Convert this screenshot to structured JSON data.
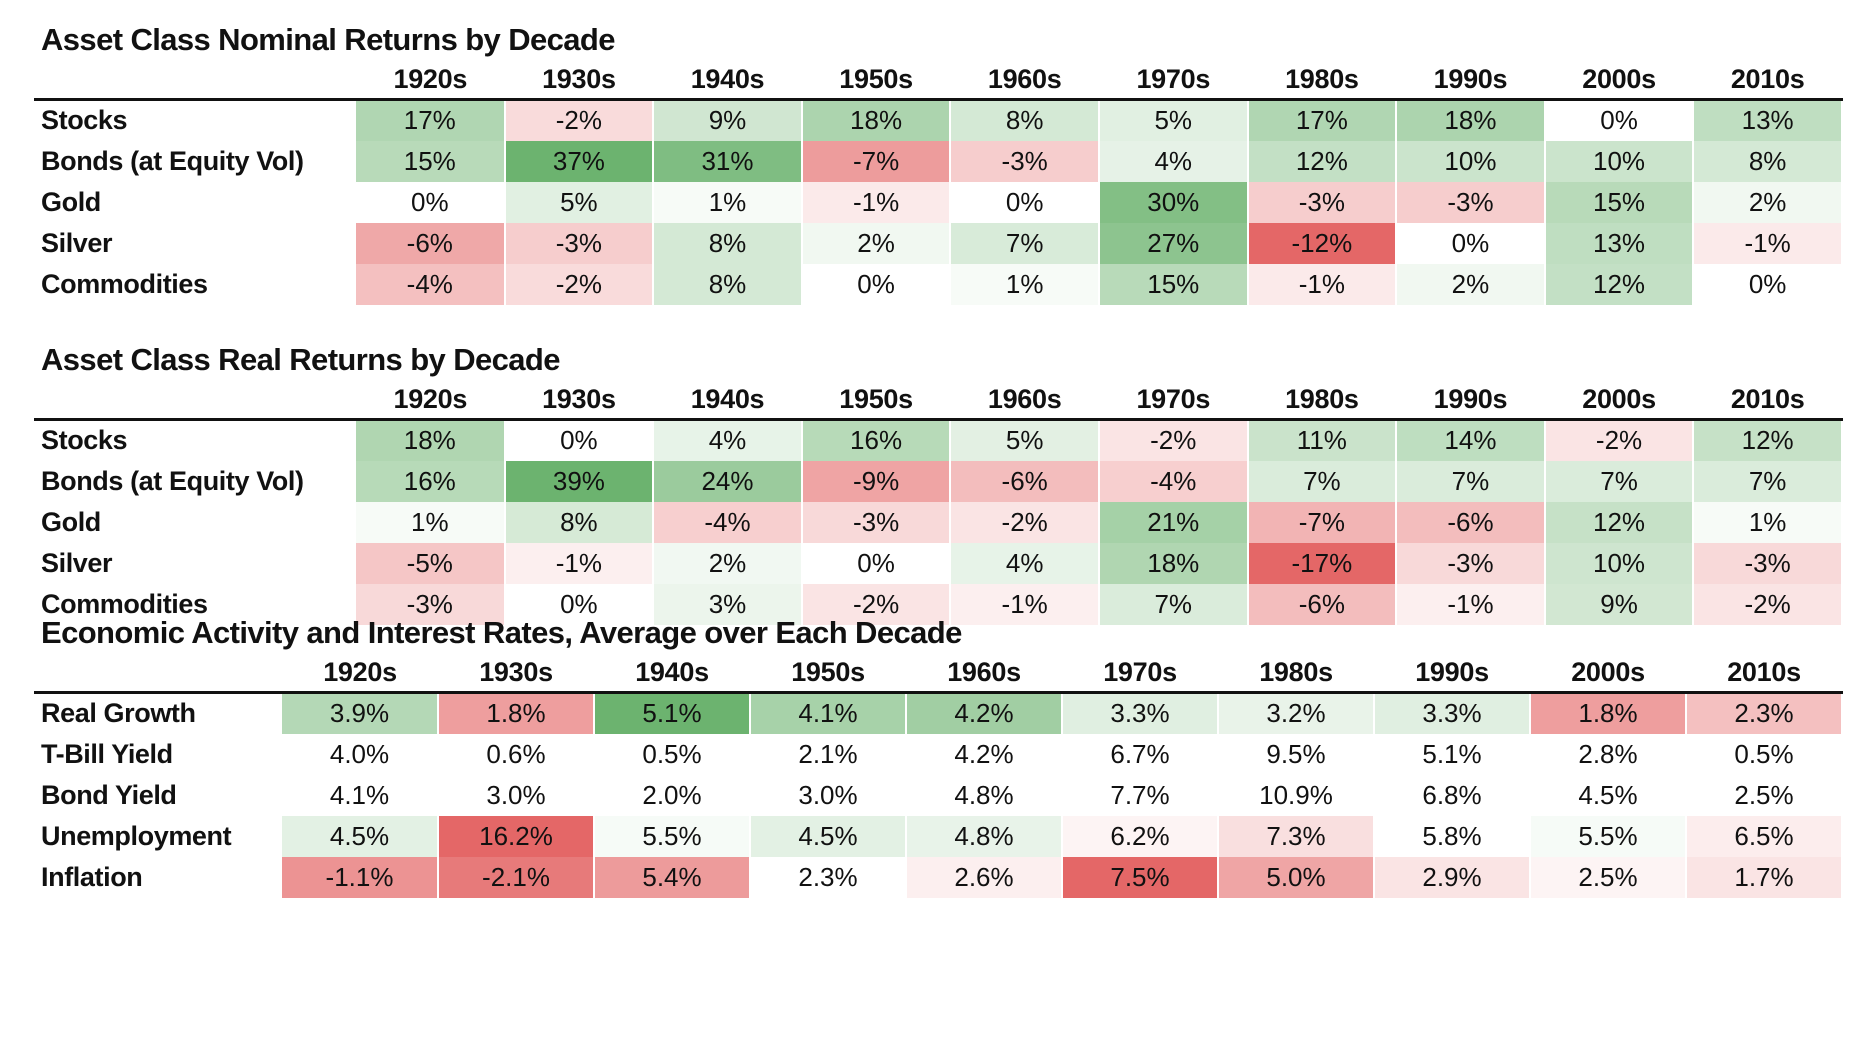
{
  "colors": {
    "green_max": "#6cb36f",
    "red_max": "#e46767",
    "neutral": "#ffffff"
  },
  "chart_data": [
    {
      "type": "table",
      "title": "Asset Class Nominal Returns by Decade",
      "columns": [
        "1920s",
        "1930s",
        "1940s",
        "1950s",
        "1960s",
        "1970s",
        "1980s",
        "1990s",
        "2000s",
        "2010s"
      ],
      "rows": [
        {
          "label": "Stocks",
          "values": [
            17,
            -2,
            9,
            18,
            8,
            5,
            17,
            18,
            0,
            13
          ],
          "display": [
            "17%",
            "-2%",
            "9%",
            "18%",
            "8%",
            "5%",
            "17%",
            "18%",
            "0%",
            "13%"
          ]
        },
        {
          "label": "Bonds (at Equity Vol)",
          "values": [
            15,
            37,
            31,
            -7,
            -3,
            4,
            12,
            10,
            10,
            8
          ],
          "display": [
            "15%",
            "37%",
            "31%",
            "-7%",
            "-3%",
            "4%",
            "12%",
            "10%",
            "10%",
            "8%"
          ]
        },
        {
          "label": "Gold",
          "values": [
            0,
            5,
            1,
            -1,
            0,
            30,
            -3,
            -3,
            15,
            2
          ],
          "display": [
            "0%",
            "5%",
            "1%",
            "-1%",
            "0%",
            "30%",
            "-3%",
            "-3%",
            "15%",
            "2%"
          ]
        },
        {
          "label": "Silver",
          "values": [
            -6,
            -3,
            8,
            2,
            7,
            27,
            -12,
            0,
            13,
            -1
          ],
          "display": [
            "-6%",
            "-3%",
            "8%",
            "2%",
            "7%",
            "27%",
            "-12%",
            "0%",
            "13%",
            "-1%"
          ]
        },
        {
          "label": "Commodities",
          "values": [
            -4,
            -2,
            8,
            0,
            1,
            15,
            -1,
            2,
            12,
            0
          ],
          "display": [
            "-4%",
            "-2%",
            "8%",
            "0%",
            "1%",
            "15%",
            "-1%",
            "2%",
            "12%",
            "0%"
          ]
        }
      ]
    },
    {
      "type": "table",
      "title": "Asset Class Real Returns by Decade",
      "columns": [
        "1920s",
        "1930s",
        "1940s",
        "1950s",
        "1960s",
        "1970s",
        "1980s",
        "1990s",
        "2000s",
        "2010s"
      ],
      "rows": [
        {
          "label": "Stocks",
          "values": [
            18,
            0,
            4,
            16,
            5,
            -2,
            11,
            14,
            -2,
            12
          ],
          "display": [
            "18%",
            "0%",
            "4%",
            "16%",
            "5%",
            "-2%",
            "11%",
            "14%",
            "-2%",
            "12%"
          ]
        },
        {
          "label": "Bonds (at Equity Vol)",
          "values": [
            16,
            39,
            24,
            -9,
            -6,
            -4,
            7,
            7,
            7,
            7
          ],
          "display": [
            "16%",
            "39%",
            "24%",
            "-9%",
            "-6%",
            "-4%",
            "7%",
            "7%",
            "7%",
            "7%"
          ]
        },
        {
          "label": "Gold",
          "values": [
            1,
            8,
            -4,
            -3,
            -2,
            21,
            -7,
            -6,
            12,
            1
          ],
          "display": [
            "1%",
            "8%",
            "-4%",
            "-3%",
            "-2%",
            "21%",
            "-7%",
            "-6%",
            "12%",
            "1%"
          ]
        },
        {
          "label": "Silver",
          "values": [
            -5,
            -1,
            2,
            0,
            4,
            18,
            -17,
            -3,
            10,
            -3
          ],
          "display": [
            "-5%",
            "-1%",
            "2%",
            "0%",
            "4%",
            "18%",
            "-17%",
            "-3%",
            "10%",
            "-3%"
          ]
        },
        {
          "label": "Commodities",
          "values": [
            -3,
            0,
            3,
            -2,
            -1,
            7,
            -6,
            -1,
            9,
            -2
          ],
          "display": [
            "-3%",
            "0%",
            "3%",
            "-2%",
            "-1%",
            "7%",
            "-6%",
            "-1%",
            "9%",
            "-2%"
          ]
        }
      ]
    },
    {
      "type": "table",
      "title": "Economic Activity and Interest Rates, Average over Each Decade",
      "columns": [
        "1920s",
        "1930s",
        "1940s",
        "1950s",
        "1960s",
        "1970s",
        "1980s",
        "1990s",
        "2000s",
        "2010s"
      ],
      "rows": [
        {
          "label": "Real Growth",
          "values": [
            3.9,
            1.8,
            5.1,
            4.1,
            4.2,
            3.3,
            3.2,
            3.3,
            1.8,
            2.3
          ],
          "display": [
            "3.9%",
            "1.8%",
            "5.1%",
            "4.1%",
            "4.2%",
            "3.3%",
            "3.2%",
            "3.3%",
            "1.8%",
            "2.3%"
          ],
          "heat": "high_good",
          "center": 3.0
        },
        {
          "label": "T-Bill Yield",
          "values": [
            4.0,
            0.6,
            0.5,
            2.1,
            4.2,
            6.7,
            9.5,
            5.1,
            2.8,
            0.5
          ],
          "display": [
            "4.0%",
            "0.6%",
            "0.5%",
            "2.1%",
            "4.2%",
            "6.7%",
            "9.5%",
            "5.1%",
            "2.8%",
            "0.5%"
          ],
          "heat": "none"
        },
        {
          "label": "Bond Yield",
          "values": [
            4.1,
            3.0,
            2.0,
            3.0,
            4.8,
            7.7,
            10.9,
            6.8,
            4.5,
            2.5
          ],
          "display": [
            "4.1%",
            "3.0%",
            "2.0%",
            "3.0%",
            "4.8%",
            "7.7%",
            "10.9%",
            "6.8%",
            "4.5%",
            "2.5%"
          ],
          "heat": "none"
        },
        {
          "label": "Unemployment",
          "values": [
            4.5,
            16.2,
            5.5,
            4.5,
            4.8,
            6.2,
            7.3,
            5.8,
            5.5,
            6.5
          ],
          "display": [
            "4.5%",
            "16.2%",
            "5.5%",
            "4.5%",
            "4.8%",
            "6.2%",
            "7.3%",
            "5.8%",
            "5.5%",
            "6.5%"
          ],
          "heat": "low_good",
          "center": 5.8
        },
        {
          "label": "Inflation",
          "values": [
            -1.1,
            -2.1,
            5.4,
            2.3,
            2.6,
            7.5,
            5.0,
            2.9,
            2.5,
            1.7
          ],
          "display": [
            "-1.1%",
            "-2.1%",
            "5.4%",
            "2.3%",
            "2.6%",
            "7.5%",
            "5.0%",
            "2.9%",
            "2.5%",
            "1.7%"
          ],
          "heat": "target",
          "center": 2.3
        }
      ]
    }
  ]
}
